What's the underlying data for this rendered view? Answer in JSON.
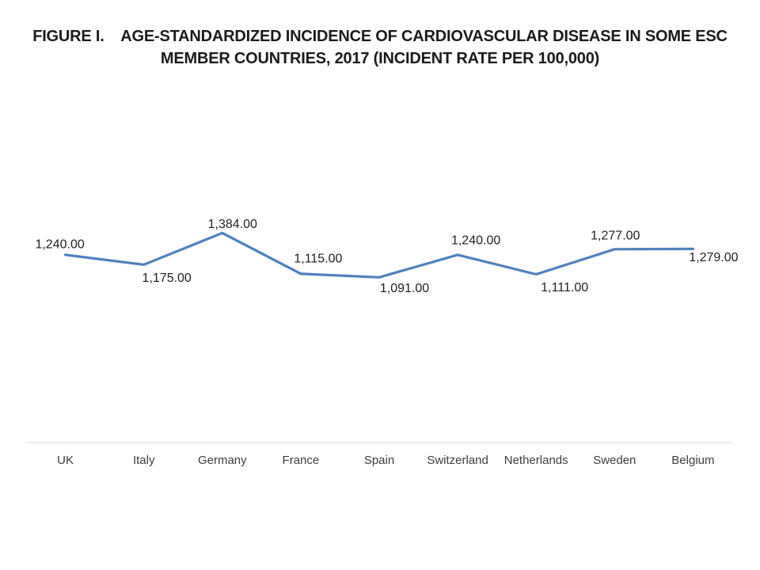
{
  "header": {
    "title_line1": "FIGURE I.    AGE-STANDARDIZED INCIDENCE OF CARDIOVASCULAR DISEASE IN SOME ESC",
    "title_line2": "MEMBER COUNTRIES, 2017 (INCIDENT RATE PER 100,000)"
  },
  "chart_data": {
    "type": "line",
    "title": "FIGURE I. AGE-STANDARDIZED INCIDENCE OF CARDIOVASCULAR DISEASE IN SOME ESC MEMBER COUNTRIES, 2017 (INCIDENT RATE PER 100,000)",
    "categories": [
      "UK",
      "Italy",
      "Germany",
      "France",
      "Spain",
      "Switzerland",
      "Netherlands",
      "Sweden",
      "Belgium"
    ],
    "values": [
      1240,
      1175,
      1384,
      1115,
      1091,
      1240,
      1111,
      1277,
      1279
    ],
    "labels": [
      "1,240.00",
      "1,175.00",
      "1,384.00",
      "1,115.00",
      "1,091.00",
      "1,240.00",
      "1,111.00",
      "1,277.00",
      "1,279.00"
    ],
    "label_positions": [
      "above",
      "below",
      "above",
      "above",
      "below",
      "above",
      "below",
      "above",
      "below-right"
    ],
    "xlabel": "",
    "ylabel": "",
    "ylim": [
      0,
      1600
    ],
    "grid": false,
    "legend": "none",
    "colors": {
      "line": "#4F81BD",
      "axis_line": "#D9D9D9",
      "data_label_text": "#1f1f1f",
      "category_label_text": "#3d3d3d",
      "title_text": "#1a1a1a"
    }
  }
}
